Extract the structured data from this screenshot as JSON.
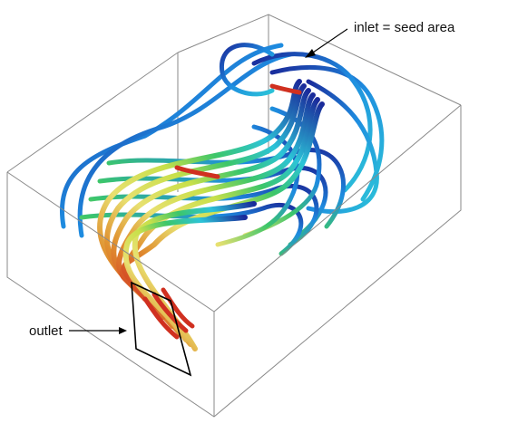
{
  "annotations": {
    "inlet_label": "inlet = seed area",
    "outlet_label": "outlet"
  },
  "colors": {
    "box_edge": "#8a8a8a",
    "outlet_frame": "#000000",
    "streamline_scale": [
      "#1a2a9a",
      "#1e8ce0",
      "#2cc4d8",
      "#3cc66a",
      "#c8e04a",
      "#e8e070",
      "#e09030",
      "#d03020"
    ]
  },
  "legend": []
}
